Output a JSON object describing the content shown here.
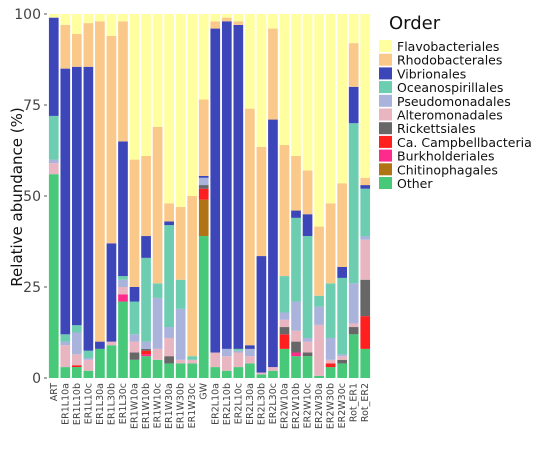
{
  "chart_data": {
    "type": "bar",
    "stacked": true,
    "ylabel": "Relative abundance (%)",
    "xlabel": "",
    "ylim": [
      0,
      100
    ],
    "y_ticks": [
      0,
      25,
      50,
      75,
      100
    ],
    "grid": false,
    "legend_title": "Order",
    "legend_position": "right",
    "categories": [
      "ART",
      "ER1L10a",
      "ER1L10b",
      "ER1L10c",
      "ER1L30a",
      "ER1L30b",
      "ER1L30c",
      "ER1W10a",
      "ER1W10b",
      "ER1W10c",
      "ER1W30a",
      "ER1W30b",
      "ER1W30c",
      "GW",
      "ER2L10a",
      "ER2L10b",
      "ER2L10c",
      "ER2L30a",
      "ER2L30b",
      "ER2L30c",
      "ER2W10a",
      "ER2W10b",
      "ER2W10c",
      "ER2W30a",
      "ER2W30b",
      "ER2W30c",
      "Rot_ER1",
      "Rot_ER2"
    ],
    "series": [
      {
        "name": "Other",
        "color": "#48C97A",
        "values": [
          56,
          3,
          3,
          2,
          8,
          9,
          21,
          5,
          6,
          5,
          4,
          4,
          4,
          39,
          3,
          2,
          3,
          4,
          1,
          2,
          8,
          6,
          6,
          0.6,
          3,
          4,
          12,
          8
        ]
      },
      {
        "name": "Chitinophagales",
        "color": "#B07415",
        "values": [
          0,
          0,
          0,
          0,
          0,
          0,
          0,
          0,
          0,
          0,
          0,
          0,
          0,
          10,
          0,
          0,
          0,
          0,
          0,
          0,
          0,
          0,
          0,
          0,
          0,
          0,
          0,
          0
        ]
      },
      {
        "name": "Burkholderiales",
        "color": "#FF2B8C",
        "values": [
          0,
          0,
          0,
          0,
          0,
          0,
          2,
          0,
          0.5,
          0,
          0,
          0,
          0,
          0,
          0,
          0,
          0,
          0,
          0,
          0,
          0,
          1,
          0,
          0,
          0,
          0,
          0,
          0
        ]
      },
      {
        "name": "Ca. Campbellbacteria",
        "color": "#FF1F1F",
        "values": [
          0,
          0,
          0.5,
          0,
          0,
          0,
          0,
          0,
          1,
          0,
          0,
          0,
          0,
          3,
          0,
          0,
          0,
          0,
          0,
          0,
          4,
          0,
          0,
          0,
          1,
          0,
          0,
          9
        ]
      },
      {
        "name": "Rickettsiales",
        "color": "#676767",
        "values": [
          0,
          0,
          0,
          0,
          0,
          0,
          0,
          2,
          0.5,
          0,
          2,
          0,
          0,
          1,
          0,
          0,
          0,
          0,
          0,
          0,
          2,
          3,
          1,
          0,
          0,
          1,
          2,
          10
        ]
      },
      {
        "name": "Alteromonadales",
        "color": "#E8B5C0",
        "values": [
          3,
          6,
          3,
          3,
          0,
          1,
          2,
          3,
          0,
          3,
          5,
          1,
          1,
          0,
          4,
          4,
          4,
          2,
          0.5,
          1,
          2,
          3,
          3,
          14,
          1,
          1,
          1,
          11
        ]
      },
      {
        "name": "Pseudomonadales",
        "color": "#A9B3DC",
        "values": [
          1,
          1,
          6,
          0.5,
          0,
          0,
          2,
          2,
          2,
          14,
          3,
          14,
          0,
          2,
          0,
          2,
          0.5,
          2,
          0,
          0,
          2,
          8,
          1,
          5,
          6,
          0.5,
          11,
          1
        ]
      },
      {
        "name": "Oceanospirillales",
        "color": "#6CCDB0",
        "values": [
          12,
          2,
          2,
          2,
          0,
          0,
          1,
          9,
          23,
          4,
          28,
          8,
          1,
          0,
          0,
          0,
          0.5,
          0,
          0,
          0,
          10,
          23,
          28,
          3,
          15,
          21,
          44,
          13
        ]
      },
      {
        "name": "Vibrionales",
        "color": "#3C46B8",
        "values": [
          27,
          73,
          71,
          78,
          2,
          27,
          37,
          4,
          6,
          0,
          1,
          0,
          0,
          0.5,
          89,
          90,
          89,
          1,
          32,
          68,
          0,
          2,
          6,
          0,
          0,
          3,
          10,
          1
        ]
      },
      {
        "name": "Rhodobacterales",
        "color": "#FAC888",
        "values": [
          0,
          12,
          9,
          12,
          88,
          57,
          33,
          35,
          22,
          43,
          5,
          20,
          44,
          21,
          2,
          1,
          1,
          65,
          30,
          25,
          36,
          15,
          12,
          19,
          22,
          23,
          12,
          2
        ]
      },
      {
        "name": "Flavobacteriales",
        "color": "#FFFF9F",
        "values": [
          1,
          3,
          5.5,
          2.5,
          2,
          6,
          2,
          40,
          39,
          31,
          52,
          53,
          50,
          23.5,
          2,
          1,
          2,
          26,
          36.5,
          4,
          36,
          39,
          43,
          58.4,
          52,
          46.5,
          8,
          45
        ]
      }
    ]
  }
}
